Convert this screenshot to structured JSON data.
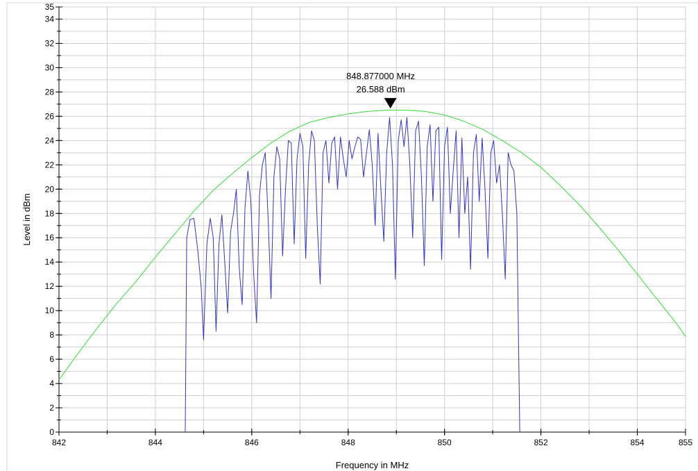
{
  "chart_data": {
    "type": "line",
    "title": "",
    "xlabel": "Frequency in MHz",
    "ylabel": "Level in dBm",
    "xlim": [
      842,
      855
    ],
    "ylim": [
      0,
      35
    ],
    "grid": true,
    "x_ticks": [
      842,
      844,
      846,
      848,
      850,
      852,
      854,
      855
    ],
    "y_ticks": [
      0,
      2,
      4,
      6,
      8,
      10,
      12,
      14,
      16,
      18,
      20,
      22,
      24,
      26,
      28,
      30,
      32,
      34,
      35
    ],
    "marker": {
      "x": 848.877,
      "y": 26.588,
      "label_freq": "848.877000 MHz",
      "label_level": "26.588 dBm"
    },
    "series": [
      {
        "color": "#33dd33",
        "x": [
          842.0,
          842.4,
          842.8,
          843.2,
          843.6,
          844.0,
          844.4,
          844.8,
          845.2,
          845.6,
          846.0,
          846.4,
          846.8,
          847.2,
          847.6,
          848.0,
          848.4,
          848.8,
          849.2,
          849.6,
          850.0,
          850.4,
          850.8,
          851.2,
          851.6,
          852.0,
          852.4,
          852.8,
          853.2,
          853.6,
          854.0,
          854.4,
          854.8,
          855.0
        ],
        "y": [
          4.3,
          6.5,
          8.6,
          10.6,
          12.4,
          14.4,
          16.3,
          18.2,
          19.9,
          21.3,
          22.6,
          23.8,
          24.8,
          25.5,
          25.9,
          26.2,
          26.4,
          26.5,
          26.5,
          26.4,
          26.1,
          25.6,
          24.9,
          24.0,
          23.0,
          21.8,
          20.3,
          18.7,
          16.9,
          15.0,
          13.0,
          11.0,
          9.0,
          7.9
        ]
      },
      {
        "color": "#3333cc",
        "x": [
          844.62,
          844.65,
          844.72,
          844.8,
          844.88,
          844.95,
          845.0,
          845.07,
          845.14,
          845.2,
          845.26,
          845.32,
          845.38,
          845.44,
          845.5,
          845.56,
          845.62,
          845.68,
          845.74,
          845.8,
          845.86,
          845.92,
          845.98,
          846.04,
          846.1,
          846.16,
          846.22,
          846.28,
          846.34,
          846.4,
          846.46,
          846.52,
          846.58,
          846.64,
          846.7,
          846.76,
          846.82,
          846.88,
          846.94,
          847.0,
          847.06,
          847.12,
          847.18,
          847.24,
          847.3,
          847.36,
          847.42,
          847.48,
          847.54,
          847.6,
          847.66,
          847.72,
          847.78,
          847.84,
          847.9,
          847.96,
          848.02,
          848.08,
          848.14,
          848.2,
          848.26,
          848.32,
          848.38,
          848.44,
          848.5,
          848.56,
          848.62,
          848.68,
          848.74,
          848.8,
          848.86,
          848.92,
          848.98,
          849.04,
          849.1,
          849.16,
          849.22,
          849.28,
          849.34,
          849.4,
          849.46,
          849.52,
          849.58,
          849.64,
          849.7,
          849.76,
          849.82,
          849.88,
          849.94,
          850.0,
          850.06,
          850.12,
          850.18,
          850.24,
          850.3,
          850.36,
          850.42,
          850.48,
          850.54,
          850.6,
          850.66,
          850.72,
          850.78,
          850.84,
          850.9,
          850.96,
          851.02,
          851.08,
          851.14,
          851.2,
          851.26,
          851.32,
          851.38,
          851.44,
          851.5,
          851.56
        ],
        "y": [
          0,
          16.0,
          17.5,
          17.6,
          15.0,
          12.0,
          7.6,
          15.5,
          17.6,
          16.0,
          8.3,
          15.5,
          17.9,
          14.0,
          9.8,
          16.5,
          18.0,
          20.0,
          13.5,
          10.5,
          18.5,
          21.5,
          19.0,
          13.0,
          9.0,
          19.5,
          22.0,
          23.0,
          17.5,
          11.0,
          21.0,
          23.5,
          22.5,
          14.5,
          20.0,
          24.0,
          23.8,
          15.5,
          22.5,
          24.6,
          23.5,
          14.3,
          22.0,
          24.8,
          24.0,
          17.0,
          12.2,
          23.0,
          24.0,
          20.5,
          23.8,
          24.3,
          20.0,
          24.3,
          22.5,
          21.0,
          24.0,
          22.5,
          23.5,
          24.3,
          24.1,
          21.0,
          23.0,
          24.9,
          22.0,
          17.0,
          24.6,
          20.0,
          15.7,
          23.0,
          25.9,
          22.0,
          12.6,
          24.0,
          25.7,
          23.5,
          25.9,
          22.0,
          16.0,
          24.8,
          25.6,
          21.0,
          13.7,
          23.5,
          25.3,
          19.0,
          24.8,
          25.1,
          14.2,
          23.5,
          25.1,
          18.0,
          21.5,
          24.8,
          16.0,
          24.2,
          18.0,
          21.0,
          13.4,
          23.0,
          24.5,
          19.0,
          24.2,
          20.0,
          14.3,
          23.0,
          24.0,
          20.5,
          22.0,
          18.0,
          12.6,
          23.0,
          22.0,
          21.5,
          18.0,
          0
        ]
      }
    ]
  }
}
